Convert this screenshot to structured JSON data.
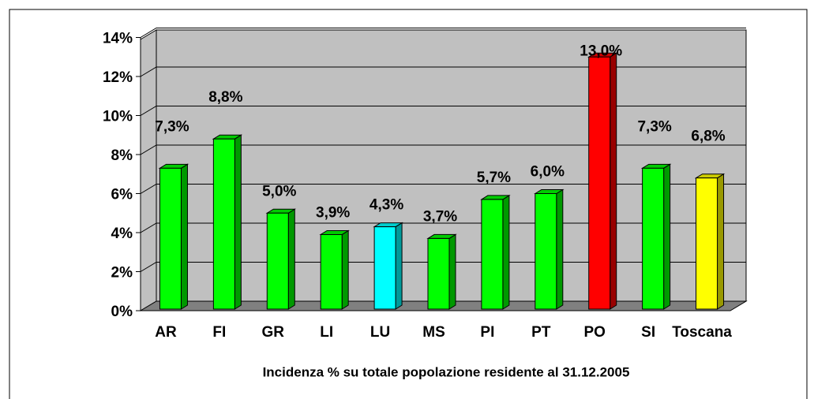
{
  "chart_data": {
    "type": "bar3d",
    "categories": [
      "AR",
      "FI",
      "GR",
      "LI",
      "LU",
      "MS",
      "PI",
      "PT",
      "PO",
      "SI",
      "Toscana"
    ],
    "values": [
      7.3,
      8.8,
      5.0,
      3.9,
      4.3,
      3.7,
      5.7,
      6.0,
      13.0,
      7.3,
      6.8
    ],
    "value_labels": [
      "7,3%",
      "8,8%",
      "5,0%",
      "3,9%",
      "4,3%",
      "3,7%",
      "5,7%",
      "6,0%",
      "13,0%",
      "7,3%",
      "6,8%"
    ],
    "colors": [
      "#00ff00",
      "#00ff00",
      "#00ff00",
      "#00ff00",
      "#00ffff",
      "#00ff00",
      "#00ff00",
      "#00ff00",
      "#ff0000",
      "#00ff00",
      "#ffff00"
    ],
    "ylim": [
      0,
      14
    ],
    "yticks": [
      {
        "value": 0,
        "label": "0%"
      },
      {
        "value": 2,
        "label": "2%"
      },
      {
        "value": 4,
        "label": "4%"
      },
      {
        "value": 6,
        "label": "6%"
      },
      {
        "value": 8,
        "label": "8%"
      },
      {
        "value": 10,
        "label": "10%"
      },
      {
        "value": 12,
        "label": "12%"
      },
      {
        "value": 14,
        "label": "14%"
      }
    ],
    "grid": true,
    "x_label": "Incidenza % su totale popolazione residente al 31.12.2005"
  }
}
